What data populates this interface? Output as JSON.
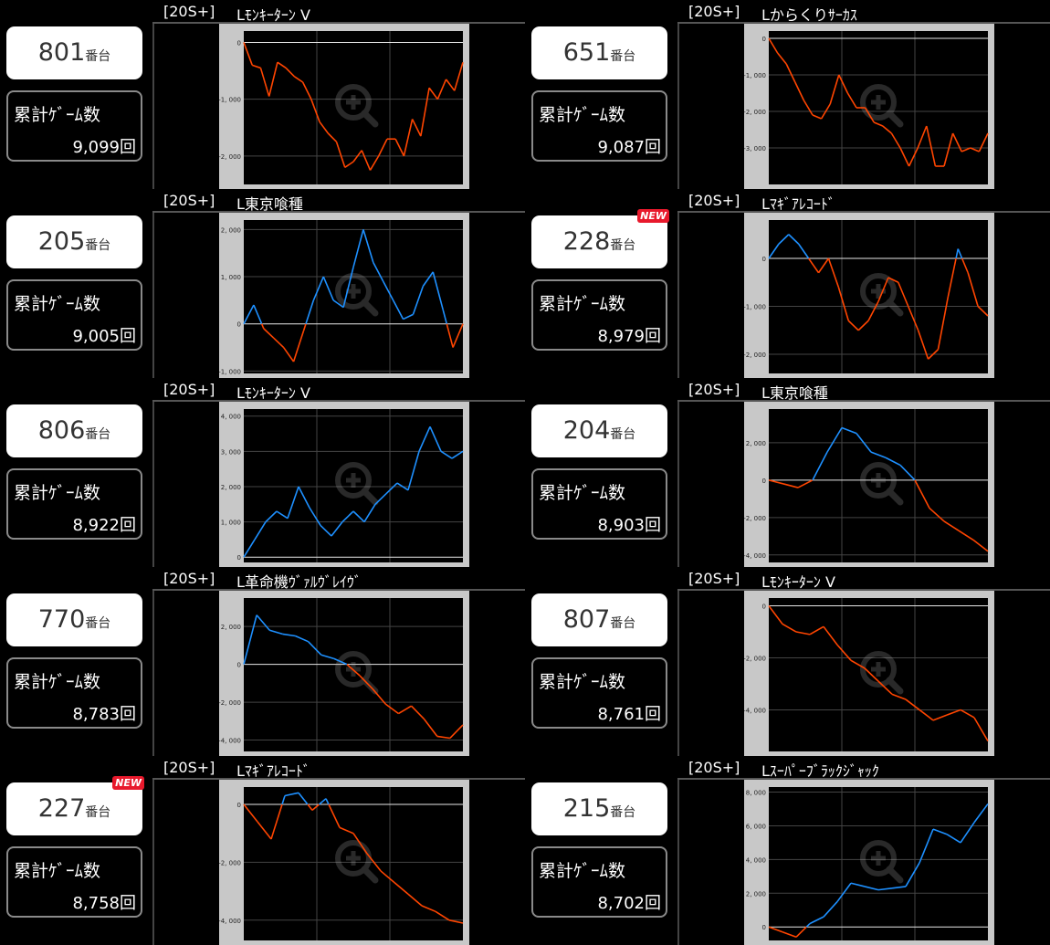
{
  "units": [
    {
      "machine": "801",
      "suffix": "番台",
      "new": false,
      "games_label": "累計ｹﾞｰﾑ数",
      "games": "9,099回",
      "tag": "[20S+]",
      "name": "Lﾓﾝｷｰﾀｰﾝ V",
      "chart_data": {
        "type": "line",
        "ticks": [
          "0",
          "-1, 000",
          "-2, 000"
        ],
        "tick_values": [
          0,
          -1000,
          -2000
        ],
        "ylim": [
          -2500,
          200
        ],
        "y": [
          0,
          -400,
          -450,
          -950,
          -350,
          -450,
          -600,
          -700,
          -1000,
          -1400,
          -1600,
          -1750,
          -2200,
          -2100,
          -1900,
          -2250,
          -2000,
          -1700,
          -1700,
          -2000,
          -1350,
          -1650,
          -800,
          -1000,
          -650,
          -850,
          -350
        ]
      }
    },
    {
      "machine": "651",
      "suffix": "番台",
      "new": false,
      "games_label": "累計ｹﾞｰﾑ数",
      "games": "9,087回",
      "tag": "[20S+]",
      "name": "Lからくりｻｰｶｽ",
      "chart_data": {
        "type": "line",
        "ticks": [
          "0",
          "-1, 000",
          "-2, 000",
          "-3, 000"
        ],
        "tick_values": [
          0,
          -1000,
          -2000,
          -3000
        ],
        "ylim": [
          -4000,
          200
        ],
        "y": [
          0,
          -400,
          -700,
          -1200,
          -1700,
          -2100,
          -2200,
          -1800,
          -1000,
          -1500,
          -1900,
          -1900,
          -2300,
          -2400,
          -2600,
          -3000,
          -3500,
          -3000,
          -2400,
          -3500,
          -3500,
          -2600,
          -3100,
          -3000,
          -3100,
          -2600
        ]
      }
    },
    {
      "machine": "205",
      "suffix": "番台",
      "new": false,
      "games_label": "累計ｹﾞｰﾑ数",
      "games": "9,005回",
      "tag": "[20S+]",
      "name": "L東京喰種",
      "chart_data": {
        "type": "line",
        "ticks": [
          "2, 000",
          "1, 000",
          "0",
          "-1, 000"
        ],
        "tick_values": [
          2000,
          1000,
          0,
          -1000
        ],
        "ylim": [
          -1050,
          2200
        ],
        "y": [
          0,
          400,
          -100,
          -300,
          -500,
          -800,
          -150,
          500,
          1000,
          500,
          350,
          1200,
          2000,
          1300,
          900,
          500,
          100,
          200,
          800,
          1100,
          300,
          -500,
          0
        ]
      }
    },
    {
      "machine": "228",
      "suffix": "番台",
      "new": true,
      "games_label": "累計ｹﾞｰﾑ数",
      "games": "8,979回",
      "tag": "[20S+]",
      "name": "Lﾏｷﾞｱﾚｺｰﾄﾞ",
      "chart_data": {
        "type": "line",
        "ticks": [
          "0",
          "-1, 000",
          "-2, 000"
        ],
        "tick_values": [
          0,
          -1000,
          -2000
        ],
        "ylim": [
          -2400,
          800
        ],
        "y": [
          0,
          300,
          500,
          300,
          0,
          -300,
          0,
          -600,
          -1300,
          -1500,
          -1300,
          -900,
          -400,
          -500,
          -1000,
          -1500,
          -2100,
          -1900,
          -800,
          200,
          -300,
          -1000,
          -1200
        ]
      }
    },
    {
      "machine": "806",
      "suffix": "番台",
      "new": false,
      "games_label": "累計ｹﾞｰﾑ数",
      "games": "8,922回",
      "tag": "[20S+]",
      "name": "Lﾓﾝｷｰﾀｰﾝ V",
      "chart_data": {
        "type": "line",
        "ticks": [
          "4, 000",
          "3, 000",
          "2, 000",
          "1, 000",
          "0"
        ],
        "tick_values": [
          4000,
          3000,
          2000,
          1000,
          0
        ],
        "ylim": [
          -150,
          4200
        ],
        "y": [
          0,
          500,
          1000,
          1300,
          1100,
          2000,
          1400,
          900,
          600,
          1000,
          1300,
          1000,
          1500,
          1800,
          2100,
          1900,
          3000,
          3700,
          3000,
          2800,
          3000
        ]
      }
    },
    {
      "machine": "204",
      "suffix": "番台",
      "new": false,
      "games_label": "累計ｹﾞｰﾑ数",
      "games": "8,903回",
      "tag": "[20S+]",
      "name": "L東京喰種",
      "chart_data": {
        "type": "line",
        "ticks": [
          "2, 000",
          "0",
          "-2, 000",
          "-4, 000"
        ],
        "tick_values": [
          2000,
          0,
          -2000,
          -4000
        ],
        "ylim": [
          -4400,
          3800
        ],
        "y": [
          0,
          -200,
          -400,
          0,
          1500,
          2800,
          2500,
          1500,
          1200,
          800,
          0,
          -1500,
          -2200,
          -2700,
          -3200,
          -3800
        ]
      }
    },
    {
      "machine": "770",
      "suffix": "番台",
      "new": false,
      "games_label": "累計ｹﾞｰﾑ数",
      "games": "8,783回",
      "tag": "[20S+]",
      "name": "L革命機ｳﾞｧﾙｳﾞﾚｲｳﾞ",
      "chart_data": {
        "type": "line",
        "ticks": [
          "2, 000",
          "0",
          "-2, 000",
          "-4, 000"
        ],
        "tick_values": [
          2000,
          0,
          -2000,
          -4000
        ],
        "ylim": [
          -4600,
          3500
        ],
        "y": [
          0,
          2600,
          1800,
          1600,
          1500,
          1200,
          500,
          300,
          0,
          -600,
          -1300,
          -2100,
          -2600,
          -2200,
          -2900,
          -3800,
          -3900,
          -3200
        ]
      }
    },
    {
      "machine": "807",
      "suffix": "番台",
      "new": false,
      "games_label": "累計ｹﾞｰﾑ数",
      "games": "8,761回",
      "tag": "[20S+]",
      "name": "Lﾓﾝｷｰﾀｰﾝ V",
      "chart_data": {
        "type": "line",
        "ticks": [
          "0",
          "-2, 000",
          "-4, 000"
        ],
        "tick_values": [
          0,
          -2000,
          -4000
        ],
        "ylim": [
          -5600,
          300
        ],
        "y": [
          0,
          -700,
          -1000,
          -1100,
          -800,
          -1500,
          -2100,
          -2400,
          -2900,
          -3400,
          -3600,
          -4000,
          -4400,
          -4200,
          -4000,
          -4300,
          -5200
        ]
      }
    },
    {
      "machine": "227",
      "suffix": "番台",
      "new": true,
      "games_label": "累計ｹﾞｰﾑ数",
      "games": "8,758回",
      "tag": "[20S+]",
      "name": "Lﾏｷﾞｱﾚｺｰﾄﾞ",
      "chart_data": {
        "type": "line",
        "ticks": [
          "0",
          "-2, 000",
          "-4, 000"
        ],
        "tick_values": [
          0,
          -2000,
          -4000
        ],
        "ylim": [
          -4700,
          600
        ],
        "y": [
          0,
          -600,
          -1200,
          300,
          400,
          -200,
          200,
          -800,
          -1000,
          -1700,
          -2300,
          -2700,
          -3100,
          -3500,
          -3700,
          -4000,
          -4100
        ]
      }
    },
    {
      "machine": "215",
      "suffix": "番台",
      "new": false,
      "games_label": "累計ｹﾞｰﾑ数",
      "games": "8,702回",
      "tag": "[20S+]",
      "name": "Lｽｰﾊﾟｰﾌﾞﾗｯｸｼﾞｬｯｸ",
      "chart_data": {
        "type": "line",
        "ticks": [
          "8, 000",
          "6, 000",
          "4, 000",
          "2, 000",
          "0"
        ],
        "tick_values": [
          8000,
          6000,
          4000,
          2000,
          0
        ],
        "ylim": [
          -800,
          8300
        ],
        "y": [
          0,
          -300,
          -600,
          200,
          600,
          1500,
          2600,
          2400,
          2200,
          2300,
          2400,
          3800,
          5800,
          5500,
          5000,
          6200,
          7300
        ]
      }
    }
  ],
  "colors": {
    "positive": "#1e90ff",
    "negative": "#ff4500"
  }
}
